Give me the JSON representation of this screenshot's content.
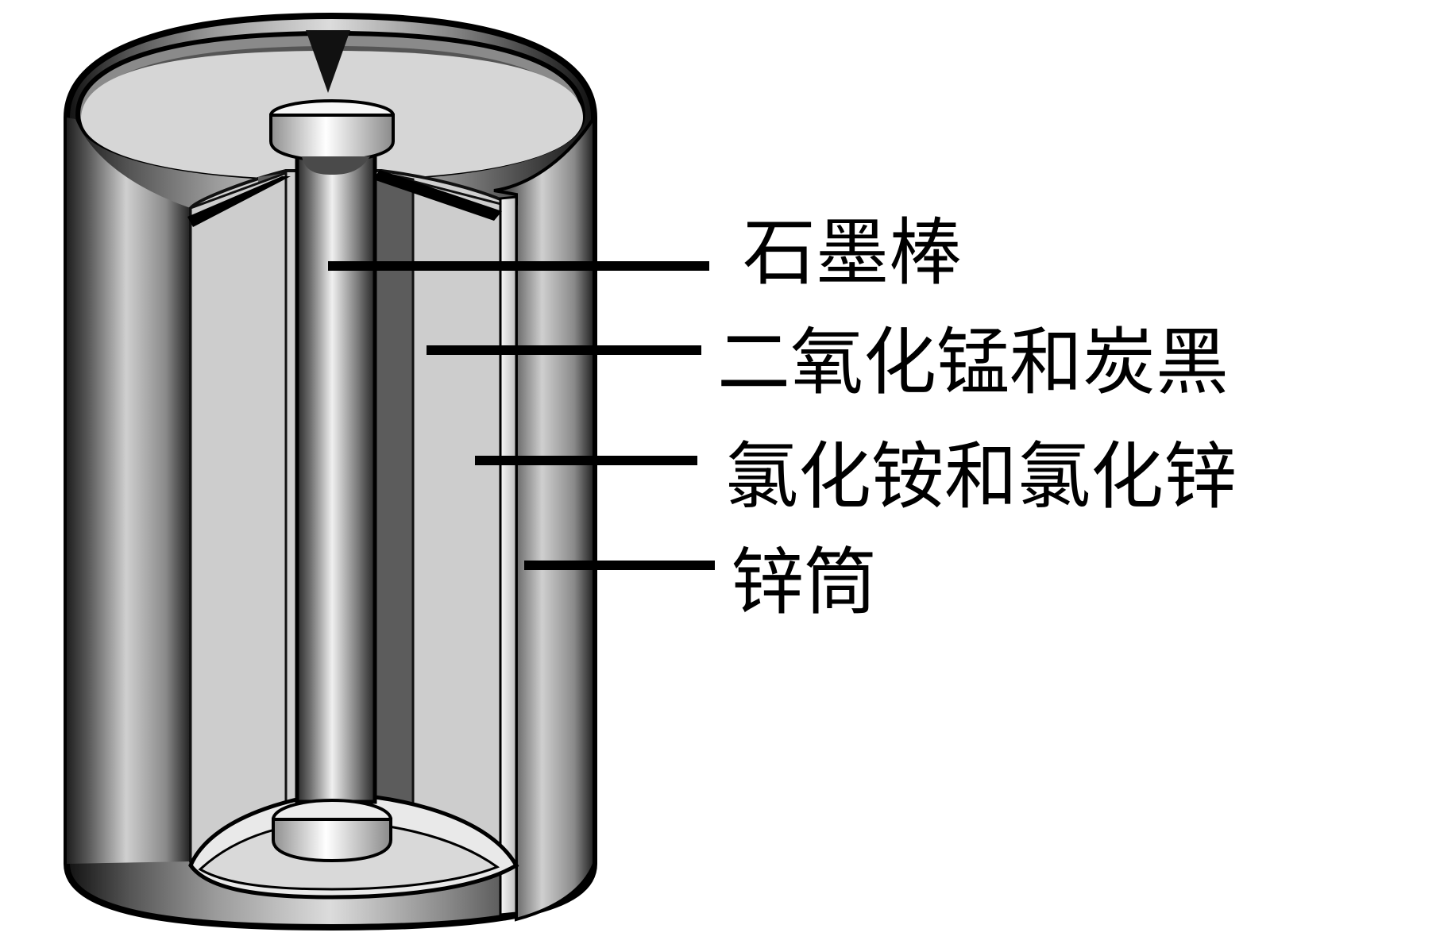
{
  "diagram": {
    "labels": [
      {
        "id": "graphite-rod",
        "text": "石墨棒"
      },
      {
        "id": "mno2-carbon",
        "text": "二氧化锰和炭黑"
      },
      {
        "id": "electrolyte",
        "text": "氯化铵和氯化锌"
      },
      {
        "id": "zinc-can",
        "text": "锌筒"
      }
    ],
    "colors": {
      "line": "#000000",
      "background": "#ffffff",
      "light_gray": "#cfcfcf",
      "mid_gray": "#8c8c8c",
      "dark_gray": "#4a4a4a"
    }
  }
}
